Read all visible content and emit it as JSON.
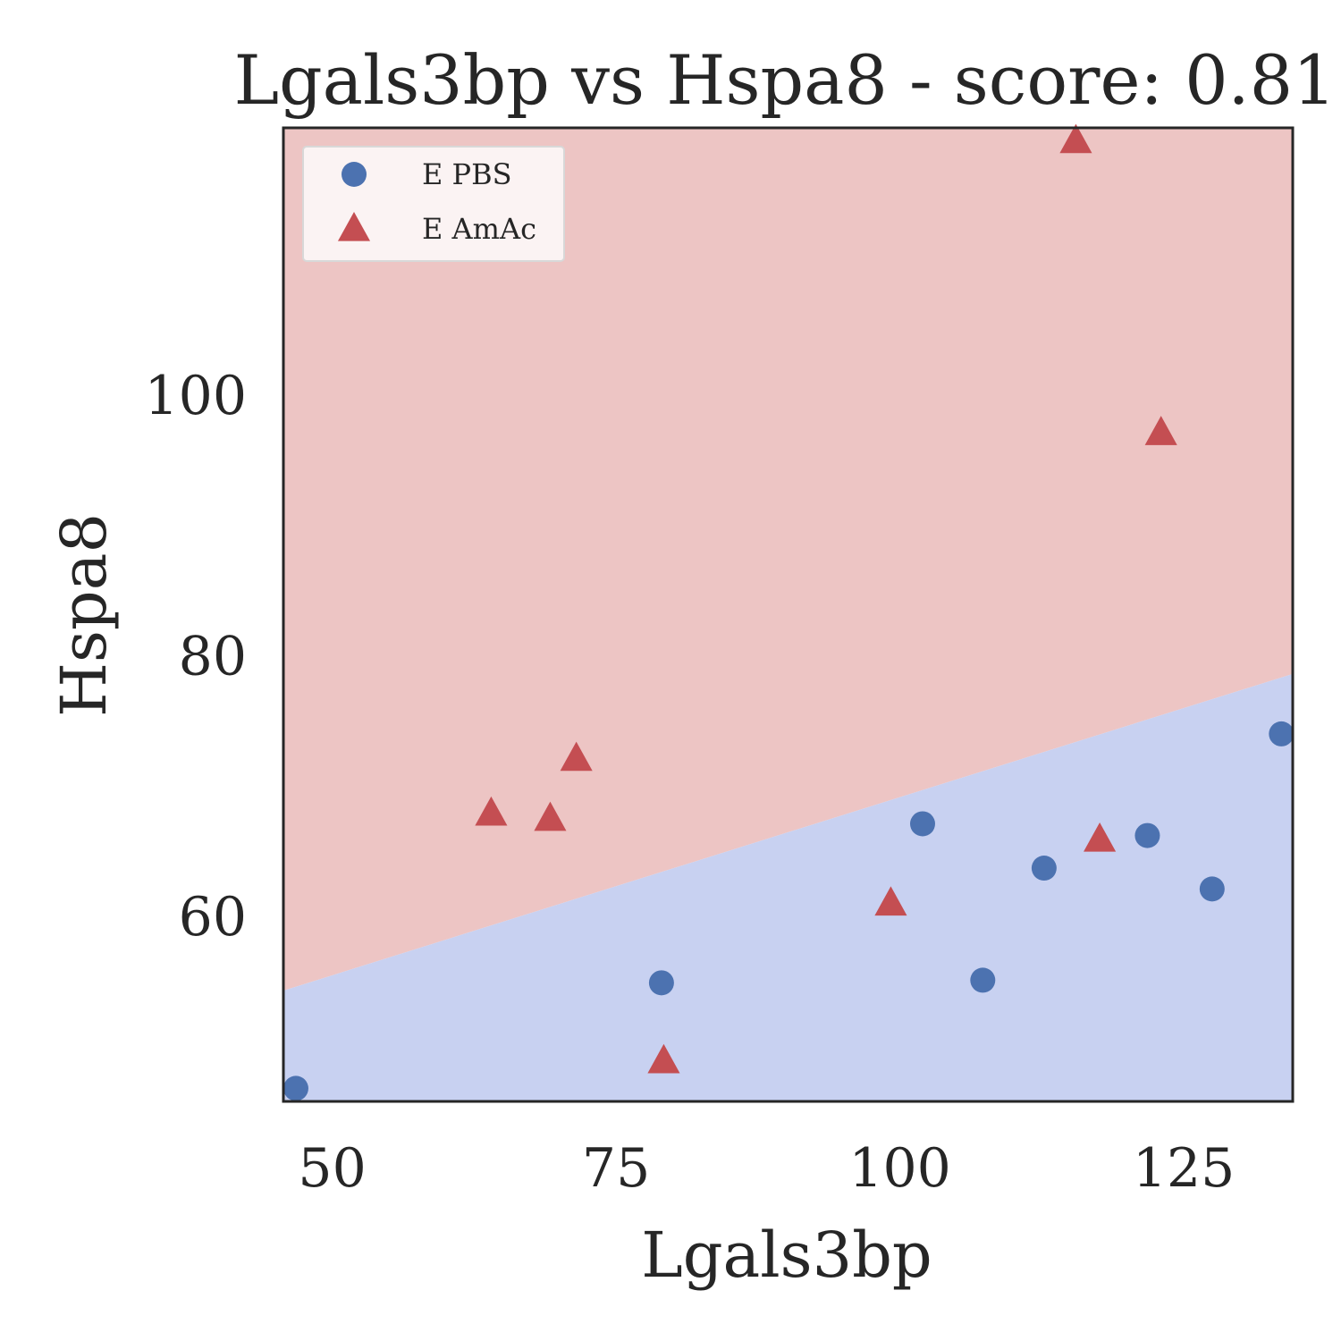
{
  "chart_data": {
    "type": "scatter",
    "title": "Lgals3bp vs Hspa8 - score: 0.81",
    "xlabel": "Lgals3bp",
    "ylabel": "Hspa8",
    "xlim": [
      45.7,
      134.6
    ],
    "ylim": [
      45.8,
      120.5
    ],
    "xticks": [
      50,
      75,
      100,
      125
    ],
    "yticks": [
      60,
      80,
      100
    ],
    "grid": false,
    "legend_position": "top-left",
    "decision_boundary": {
      "line": [
        [
          45.7,
          54.3
        ],
        [
          134.6,
          78.6
        ]
      ],
      "above_region": "E AmAc",
      "below_region": "E PBS",
      "above_color": "#edc5c4",
      "below_color": "#c8d1f1"
    },
    "series": [
      {
        "name": "E PBS",
        "marker": "circle",
        "color": "#4c72b0",
        "points": [
          [
            46.8,
            46.8
          ],
          [
            79.0,
            54.9
          ],
          [
            102.0,
            67.1
          ],
          [
            107.3,
            55.1
          ],
          [
            112.7,
            63.7
          ],
          [
            121.8,
            66.2
          ],
          [
            127.5,
            62.1
          ],
          [
            133.6,
            74.0
          ]
        ]
      },
      {
        "name": "E AmAc",
        "marker": "triangle",
        "color": "#c44e52",
        "points": [
          [
            115.5,
            119.5
          ],
          [
            123.0,
            97.1
          ],
          [
            64.0,
            67.9
          ],
          [
            69.2,
            67.5
          ],
          [
            71.5,
            72.1
          ],
          [
            117.6,
            65.9
          ],
          [
            99.2,
            61.0
          ],
          [
            79.2,
            48.9
          ]
        ]
      }
    ]
  }
}
